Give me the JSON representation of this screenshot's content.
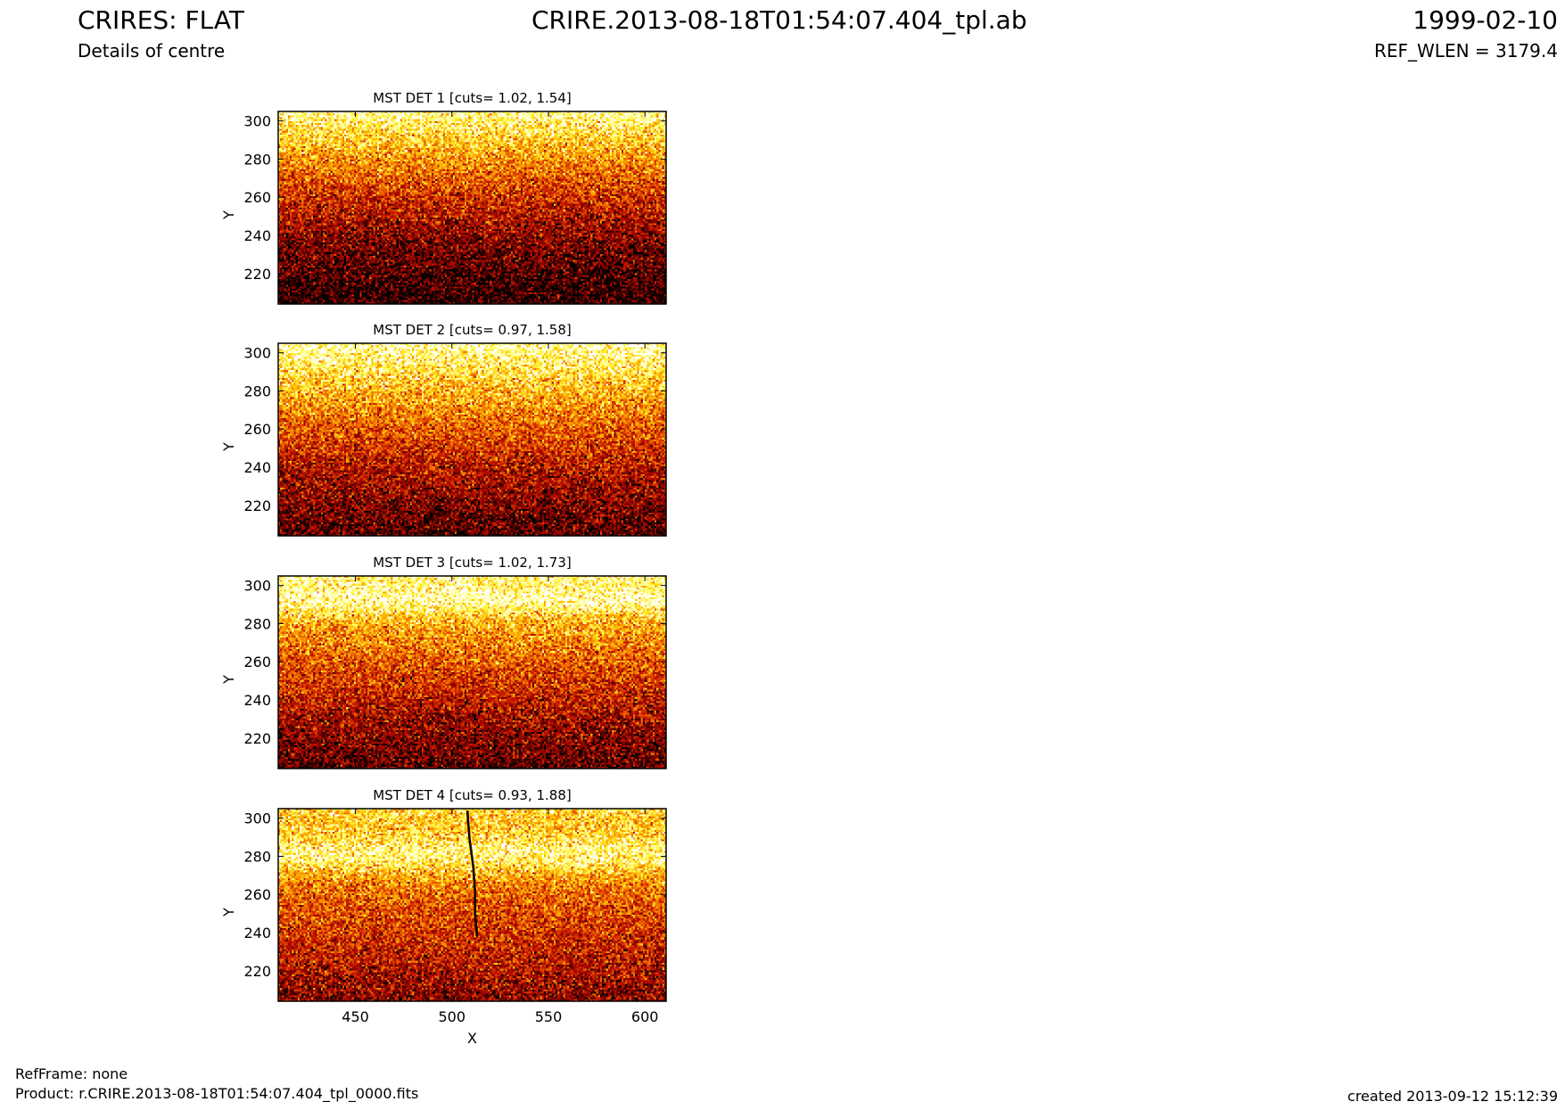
{
  "header": {
    "title": "CRIRES: FLAT",
    "subtitle": "Details of centre",
    "filename": "CRIRE.2013-08-18T01:54:07.404_tpl.ab",
    "date": "1999-02-10",
    "ref_wlen": "REF_WLEN = 3179.4"
  },
  "footer": {
    "refframe": "RefFrame: none",
    "product": "Product: r.CRIRE.2013-08-18T01:54:07.404_tpl_0000.fits",
    "created": "created 2013-09-12 15:12:39"
  },
  "colors": {
    "colormap": [
      "#000000",
      "#7a0000",
      "#c41200",
      "#ec6400",
      "#ffb800",
      "#ffff50",
      "#ffffff"
    ]
  },
  "chart_data": [
    {
      "type": "heatmap",
      "title": "MST DET 1 [cuts= 1.02, 1.54]",
      "ylabel": "Y",
      "xlabel": "",
      "xlim": [
        410,
        611
      ],
      "ylim": [
        204,
        305
      ],
      "yticks": [
        220,
        240,
        260,
        280,
        300
      ],
      "xticks": [],
      "colormap": "hot",
      "profile": {
        "low": 0.05,
        "high": 0.92,
        "gamma": 1.6
      },
      "features": []
    },
    {
      "type": "heatmap",
      "title": "MST DET 2 [cuts= 0.97, 1.58]",
      "ylabel": "Y",
      "xlabel": "",
      "xlim": [
        410,
        611
      ],
      "ylim": [
        204,
        305
      ],
      "yticks": [
        220,
        240,
        260,
        280,
        300
      ],
      "xticks": [],
      "colormap": "hot",
      "profile": {
        "low": 0.12,
        "high": 0.95,
        "gamma": 1.4
      },
      "features": []
    },
    {
      "type": "heatmap",
      "title": "MST DET 3 [cuts= 1.02, 1.73]",
      "ylabel": "Y",
      "xlabel": "",
      "xlim": [
        410,
        611
      ],
      "ylim": [
        204,
        305
      ],
      "yticks": [
        220,
        240,
        260,
        280,
        300
      ],
      "xticks": [],
      "colormap": "hot",
      "profile": {
        "low": 0.12,
        "high": 0.85,
        "gamma": 1.2,
        "band_y": 292,
        "band_width": 8,
        "band_strength": 0.18
      },
      "features": []
    },
    {
      "type": "heatmap",
      "title": "MST DET 4 [cuts= 0.93, 1.88]",
      "ylabel": "Y",
      "xlabel": "X",
      "xlim": [
        410,
        611
      ],
      "ylim": [
        204,
        305
      ],
      "yticks": [
        220,
        240,
        260,
        280,
        300
      ],
      "xticks": [
        450,
        500,
        550,
        600
      ],
      "colormap": "hot",
      "profile": {
        "low": 0.2,
        "high": 0.75,
        "gamma": 1.0,
        "band_y": 280,
        "band_width": 10,
        "band_strength": 0.25
      },
      "features": [
        {
          "kind": "dark-line",
          "points": [
            [
              508,
              304
            ],
            [
              509,
              290
            ],
            [
              511,
              275
            ],
            [
              512,
              262
            ],
            [
              512,
              250
            ],
            [
              513,
              238
            ]
          ]
        }
      ]
    }
  ]
}
